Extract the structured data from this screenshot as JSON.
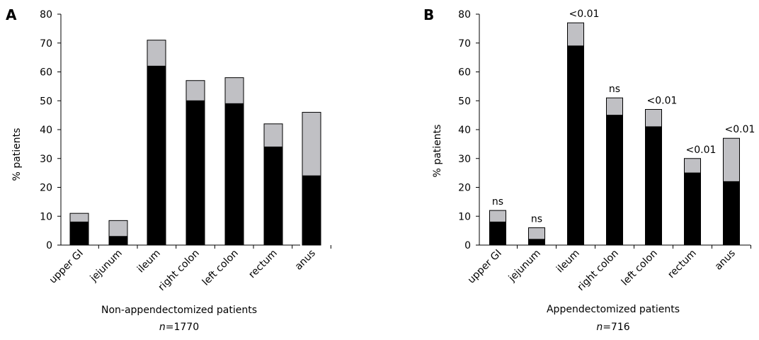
{
  "chart_data": [
    {
      "type": "bar",
      "stacked": true,
      "panel": "A",
      "categories": [
        "upper GI",
        "jejunum",
        "ileum",
        "right colon",
        "left colon",
        "rectum",
        "anus"
      ],
      "series": [
        {
          "values": [
            8,
            3,
            62,
            50,
            49,
            34,
            24
          ],
          "color": "#000000"
        },
        {
          "values": [
            3,
            5.5,
            9,
            7,
            9,
            8,
            22
          ],
          "color": "#c0c0c4"
        }
      ],
      "totals": [
        11,
        8.5,
        71,
        57,
        58,
        42,
        46
      ],
      "annotations": [
        "",
        "",
        "",
        "",
        "",
        "",
        ""
      ],
      "ylabel": "% patients",
      "xlabel": "Non-appendectomized patients",
      "n_label": "n",
      "n_value": "=1770",
      "ylim": [
        0,
        80
      ],
      "yticks": [
        "0",
        "10",
        "20",
        "30",
        "40",
        "50",
        "60",
        "70",
        "80"
      ],
      "grid": false
    },
    {
      "type": "bar",
      "stacked": true,
      "panel": "B",
      "categories": [
        "upper GI",
        "jejunum",
        "ileum",
        "right colon",
        "left colon",
        "rectum",
        "anus"
      ],
      "series": [
        {
          "values": [
            8,
            2,
            69,
            45,
            41,
            25,
            22
          ],
          "color": "#000000"
        },
        {
          "values": [
            4,
            4,
            8,
            6,
            6,
            5,
            15
          ],
          "color": "#c0c0c4"
        }
      ],
      "totals": [
        12,
        6,
        77,
        51,
        47,
        30,
        37
      ],
      "annotations": [
        "ns",
        "ns",
        "<0.01",
        "ns",
        "<0.01",
        "<0.01",
        "<0.01"
      ],
      "ylabel": "% patients",
      "xlabel": "Appendectomized patients",
      "n_label": "n",
      "n_value": "=716",
      "ylim": [
        0,
        80
      ],
      "yticks": [
        "0",
        "10",
        "20",
        "30",
        "40",
        "50",
        "60",
        "70",
        "80"
      ],
      "grid": false
    }
  ]
}
